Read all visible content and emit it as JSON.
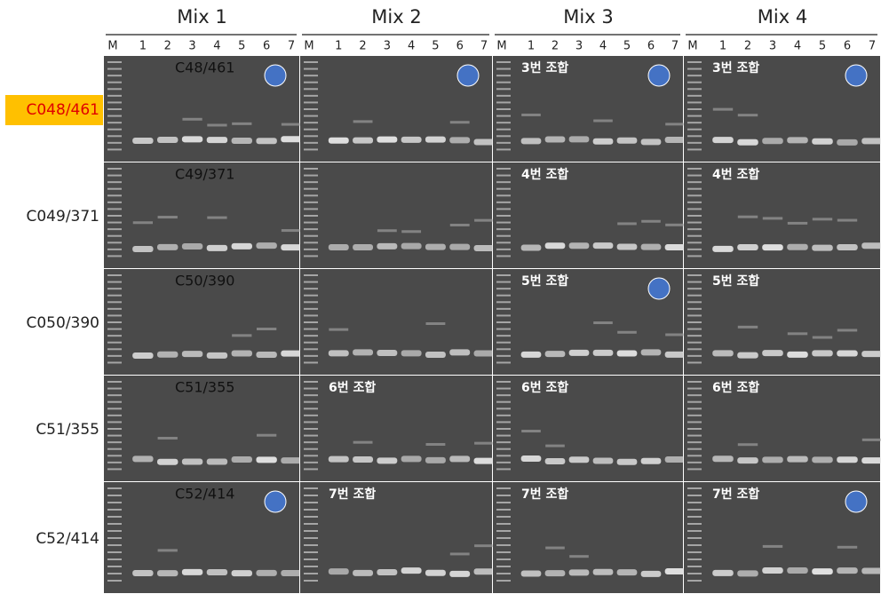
{
  "columns": [
    "Mix 1",
    "Mix 2",
    "Mix 3",
    "Mix 4"
  ],
  "lanes": [
    "M",
    "1",
    "2",
    "3",
    "4",
    "5",
    "6",
    "7"
  ],
  "rows": [
    {
      "label": "C048/461",
      "highlight": true,
      "cells": [
        {
          "label": "C48/461",
          "marked": true
        },
        {
          "marked": true
        },
        {
          "label": "3번 조합",
          "marked": true
        },
        {
          "label": "3번 조합",
          "marked": true
        }
      ]
    },
    {
      "label": "C049/371",
      "cells": [
        {
          "label": "C49/371"
        },
        {},
        {
          "label": "4번 조합"
        },
        {
          "label": "4번 조합"
        }
      ]
    },
    {
      "label": "C050/390",
      "cells": [
        {
          "label": "C50/390"
        },
        {},
        {
          "label": "5번 조합",
          "marked": true
        },
        {
          "label": "5번 조합"
        }
      ]
    },
    {
      "label": "C51/355",
      "cells": [
        {
          "label": "C51/355"
        },
        {
          "label": "6번 조합"
        },
        {
          "label": "6번 조합"
        },
        {
          "label": "6번 조합"
        }
      ]
    },
    {
      "label": "C52/414",
      "cells": [
        {
          "label": "C52/414",
          "marked": true
        },
        {
          "label": "7번 조합"
        },
        {
          "label": "7번 조합"
        },
        {
          "label": "7번 조합",
          "marked": true
        }
      ]
    }
  ]
}
